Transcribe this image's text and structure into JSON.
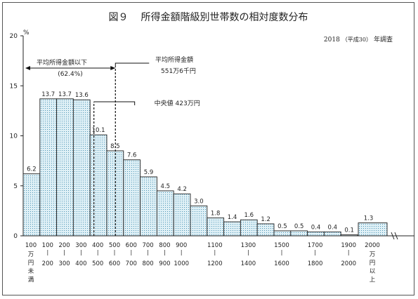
{
  "chart_data": {
    "type": "bar",
    "title": "所得金額階級別世帯数の相対度数分布",
    "figure_number": "図９",
    "subtitle_year": "2018",
    "subtitle_era": "（平成30）",
    "subtitle_suffix": "年調査",
    "y_unit": "%",
    "ylim": [
      0,
      20
    ],
    "y_ticks": [
      "0",
      "5",
      "10",
      "15",
      "20"
    ],
    "categories": [
      "100万円未満",
      "100-200",
      "200-300",
      "300-400",
      "400-500",
      "500-600",
      "600-700",
      "700-800",
      "800-900",
      "900-1000",
      "1000-1100",
      "1100-1200",
      "1200-1300",
      "1300-1400",
      "1400-1500",
      "1500-1600",
      "1600-1700",
      "1700-1800",
      "1800-1900",
      "1900-2000",
      "2000万円以上"
    ],
    "values": [
      6.2,
      13.7,
      13.7,
      13.6,
      10.1,
      8.5,
      7.6,
      5.9,
      4.5,
      4.2,
      3.0,
      1.8,
      1.4,
      1.6,
      1.2,
      0.5,
      0.5,
      0.4,
      0.4,
      0.1,
      1.3
    ],
    "value_labels": [
      "6.2",
      "13.7",
      "13.7",
      "13.6",
      "10.1",
      "8.5",
      "7.6",
      "5.9",
      "4.5",
      "4.2",
      "3.0",
      "1.8",
      "1.4",
      "1.6",
      "1.2",
      "0.5",
      "0.5",
      "0.4",
      "0.4",
      "0.1",
      "1.3"
    ],
    "x_tick_labels": [
      {
        "top": "100",
        "bottom": [
          "万",
          "円",
          "未",
          "満"
        ]
      },
      {
        "top": "100",
        "bottom": [
          "200"
        ]
      },
      {
        "top": "200",
        "bottom": [
          "300"
        ]
      },
      {
        "top": "300",
        "bottom": [
          "400"
        ]
      },
      {
        "top": "400",
        "bottom": [
          "500"
        ]
      },
      {
        "top": "500",
        "bottom": [
          "600"
        ]
      },
      {
        "top": "600",
        "bottom": [
          "700"
        ]
      },
      {
        "top": "700",
        "bottom": [
          "800"
        ]
      },
      {
        "top": "800",
        "bottom": [
          "900"
        ]
      },
      {
        "top": "900",
        "bottom": [
          "1000"
        ]
      },
      {
        "top": "",
        "bottom": []
      },
      {
        "top": "1100",
        "bottom": [
          "1200"
        ]
      },
      {
        "top": "",
        "bottom": []
      },
      {
        "top": "1300",
        "bottom": [
          "1400"
        ]
      },
      {
        "top": "",
        "bottom": []
      },
      {
        "top": "1500",
        "bottom": [
          "1600"
        ]
      },
      {
        "top": "",
        "bottom": []
      },
      {
        "top": "1700",
        "bottom": [
          "1800"
        ]
      },
      {
        "top": "",
        "bottom": []
      },
      {
        "top": "1900",
        "bottom": [
          "2000"
        ]
      },
      {
        "top": "2000",
        "bottom": [
          "万",
          "円",
          "以",
          "上"
        ]
      }
    ],
    "annotations": {
      "below_mean": {
        "line1": "平均所得金額以下",
        "line2": "(62.4%)"
      },
      "mean": {
        "line1": "平均所得金額",
        "line2": "551万6千円",
        "value": 551.6
      },
      "median": {
        "text": "中央値 423万円",
        "value": 423
      }
    },
    "bar_fill": "#dff0f6",
    "bar_stroke": "#222222",
    "grid": false,
    "legend": "none"
  }
}
